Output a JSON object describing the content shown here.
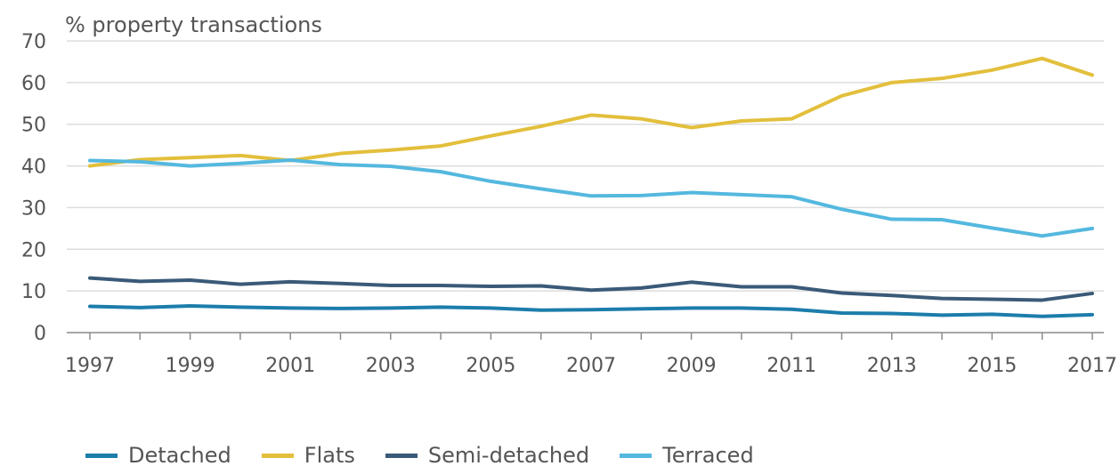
{
  "chart_data": {
    "type": "line",
    "title": "",
    "ylabel": "% property transactions",
    "xlabel": "",
    "ylim": [
      0,
      70
    ],
    "yticks": [
      0,
      10,
      20,
      30,
      40,
      50,
      60,
      70
    ],
    "xticks": [
      "1997",
      "1999",
      "2001",
      "2003",
      "2005",
      "2007",
      "2009",
      "2011",
      "2013",
      "2015",
      "2017"
    ],
    "x": [
      1997,
      1998,
      1999,
      2000,
      2001,
      2002,
      2003,
      2004,
      2005,
      2006,
      2007,
      2008,
      2009,
      2010,
      2011,
      2012,
      2013,
      2014,
      2015,
      2016,
      2017
    ],
    "grid": true,
    "legend_position": "bottom-left",
    "series": [
      {
        "name": "Detached",
        "color": "#1c7dab",
        "values": [
          6.3,
          6.0,
          6.4,
          6.1,
          5.9,
          5.8,
          5.9,
          6.1,
          5.9,
          5.4,
          5.5,
          5.7,
          5.9,
          5.9,
          5.6,
          4.7,
          4.6,
          4.2,
          4.4,
          3.9,
          4.3
        ]
      },
      {
        "name": "Flats",
        "color": "#e3bf3c",
        "values": [
          40.0,
          41.5,
          42.0,
          42.5,
          41.3,
          43.0,
          43.8,
          44.8,
          47.2,
          49.5,
          52.2,
          51.3,
          49.2,
          50.8,
          51.3,
          56.8,
          60.0,
          61.0,
          63.0,
          65.8,
          61.8
        ]
      },
      {
        "name": "Semi-detached",
        "color": "#3a5a78",
        "values": [
          13.1,
          12.3,
          12.6,
          11.6,
          12.2,
          11.8,
          11.3,
          11.3,
          11.1,
          11.2,
          10.2,
          10.7,
          12.1,
          11.0,
          11.0,
          9.5,
          8.9,
          8.2,
          8.0,
          7.8,
          9.4
        ]
      },
      {
        "name": "Terraced",
        "color": "#54b8df",
        "values": [
          41.3,
          41.0,
          40.0,
          40.6,
          41.4,
          40.3,
          39.9,
          38.6,
          36.3,
          34.5,
          32.8,
          32.9,
          33.6,
          33.1,
          32.6,
          29.6,
          27.2,
          27.1,
          25.1,
          23.2,
          25.0
        ]
      }
    ]
  }
}
